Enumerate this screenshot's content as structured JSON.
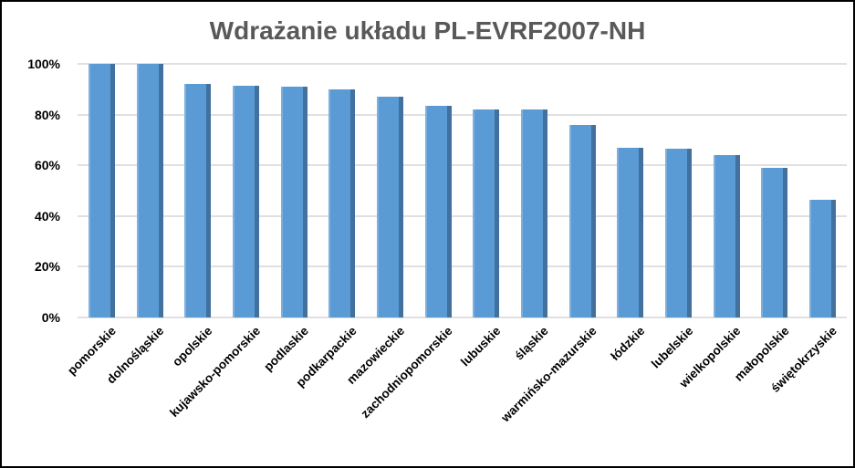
{
  "chart_data": {
    "type": "bar",
    "title": "Wdrażanie układu PL-EVRF2007-NH",
    "categories": [
      "pomorskie",
      "dolnośląskie",
      "opolskie",
      "kujawsko-pomorskie",
      "podlaskie",
      "podkarpackie",
      "mazowieckie",
      "zachodniopomorskie",
      "lubuskie",
      "śląskie",
      "warmińsko-mazurskie",
      "łódzkie",
      "lubelskie",
      "wielkopolskie",
      "małopolskie",
      "świętokrzyskie"
    ],
    "values": [
      100,
      100,
      92,
      91.5,
      91,
      90,
      87,
      83.5,
      82,
      82,
      76,
      67,
      66.5,
      64,
      59,
      46.5
    ],
    "value_unit": "%",
    "xlabel": "",
    "ylabel": "",
    "ylim": [
      0,
      100
    ],
    "grid": true,
    "legend": false,
    "x_label_rotation_deg": 45,
    "y_ticks": [
      {
        "label": "100%",
        "value": 100
      },
      {
        "label": "80%",
        "value": 80
      },
      {
        "label": "60%",
        "value": 60
      },
      {
        "label": "40%",
        "value": 40
      },
      {
        "label": "20%",
        "value": 20
      },
      {
        "label": "0%",
        "value": 0
      }
    ],
    "colors": {
      "bar_fill": "#5b9bd5",
      "bar_edge_dark": "#41719c",
      "bar_edge_light": "#7fb0dd",
      "title": "#595959",
      "axis_text": "#000000",
      "gridline": "#e0e0e0",
      "background": "#ffffff",
      "frame_border": "#000000"
    }
  }
}
